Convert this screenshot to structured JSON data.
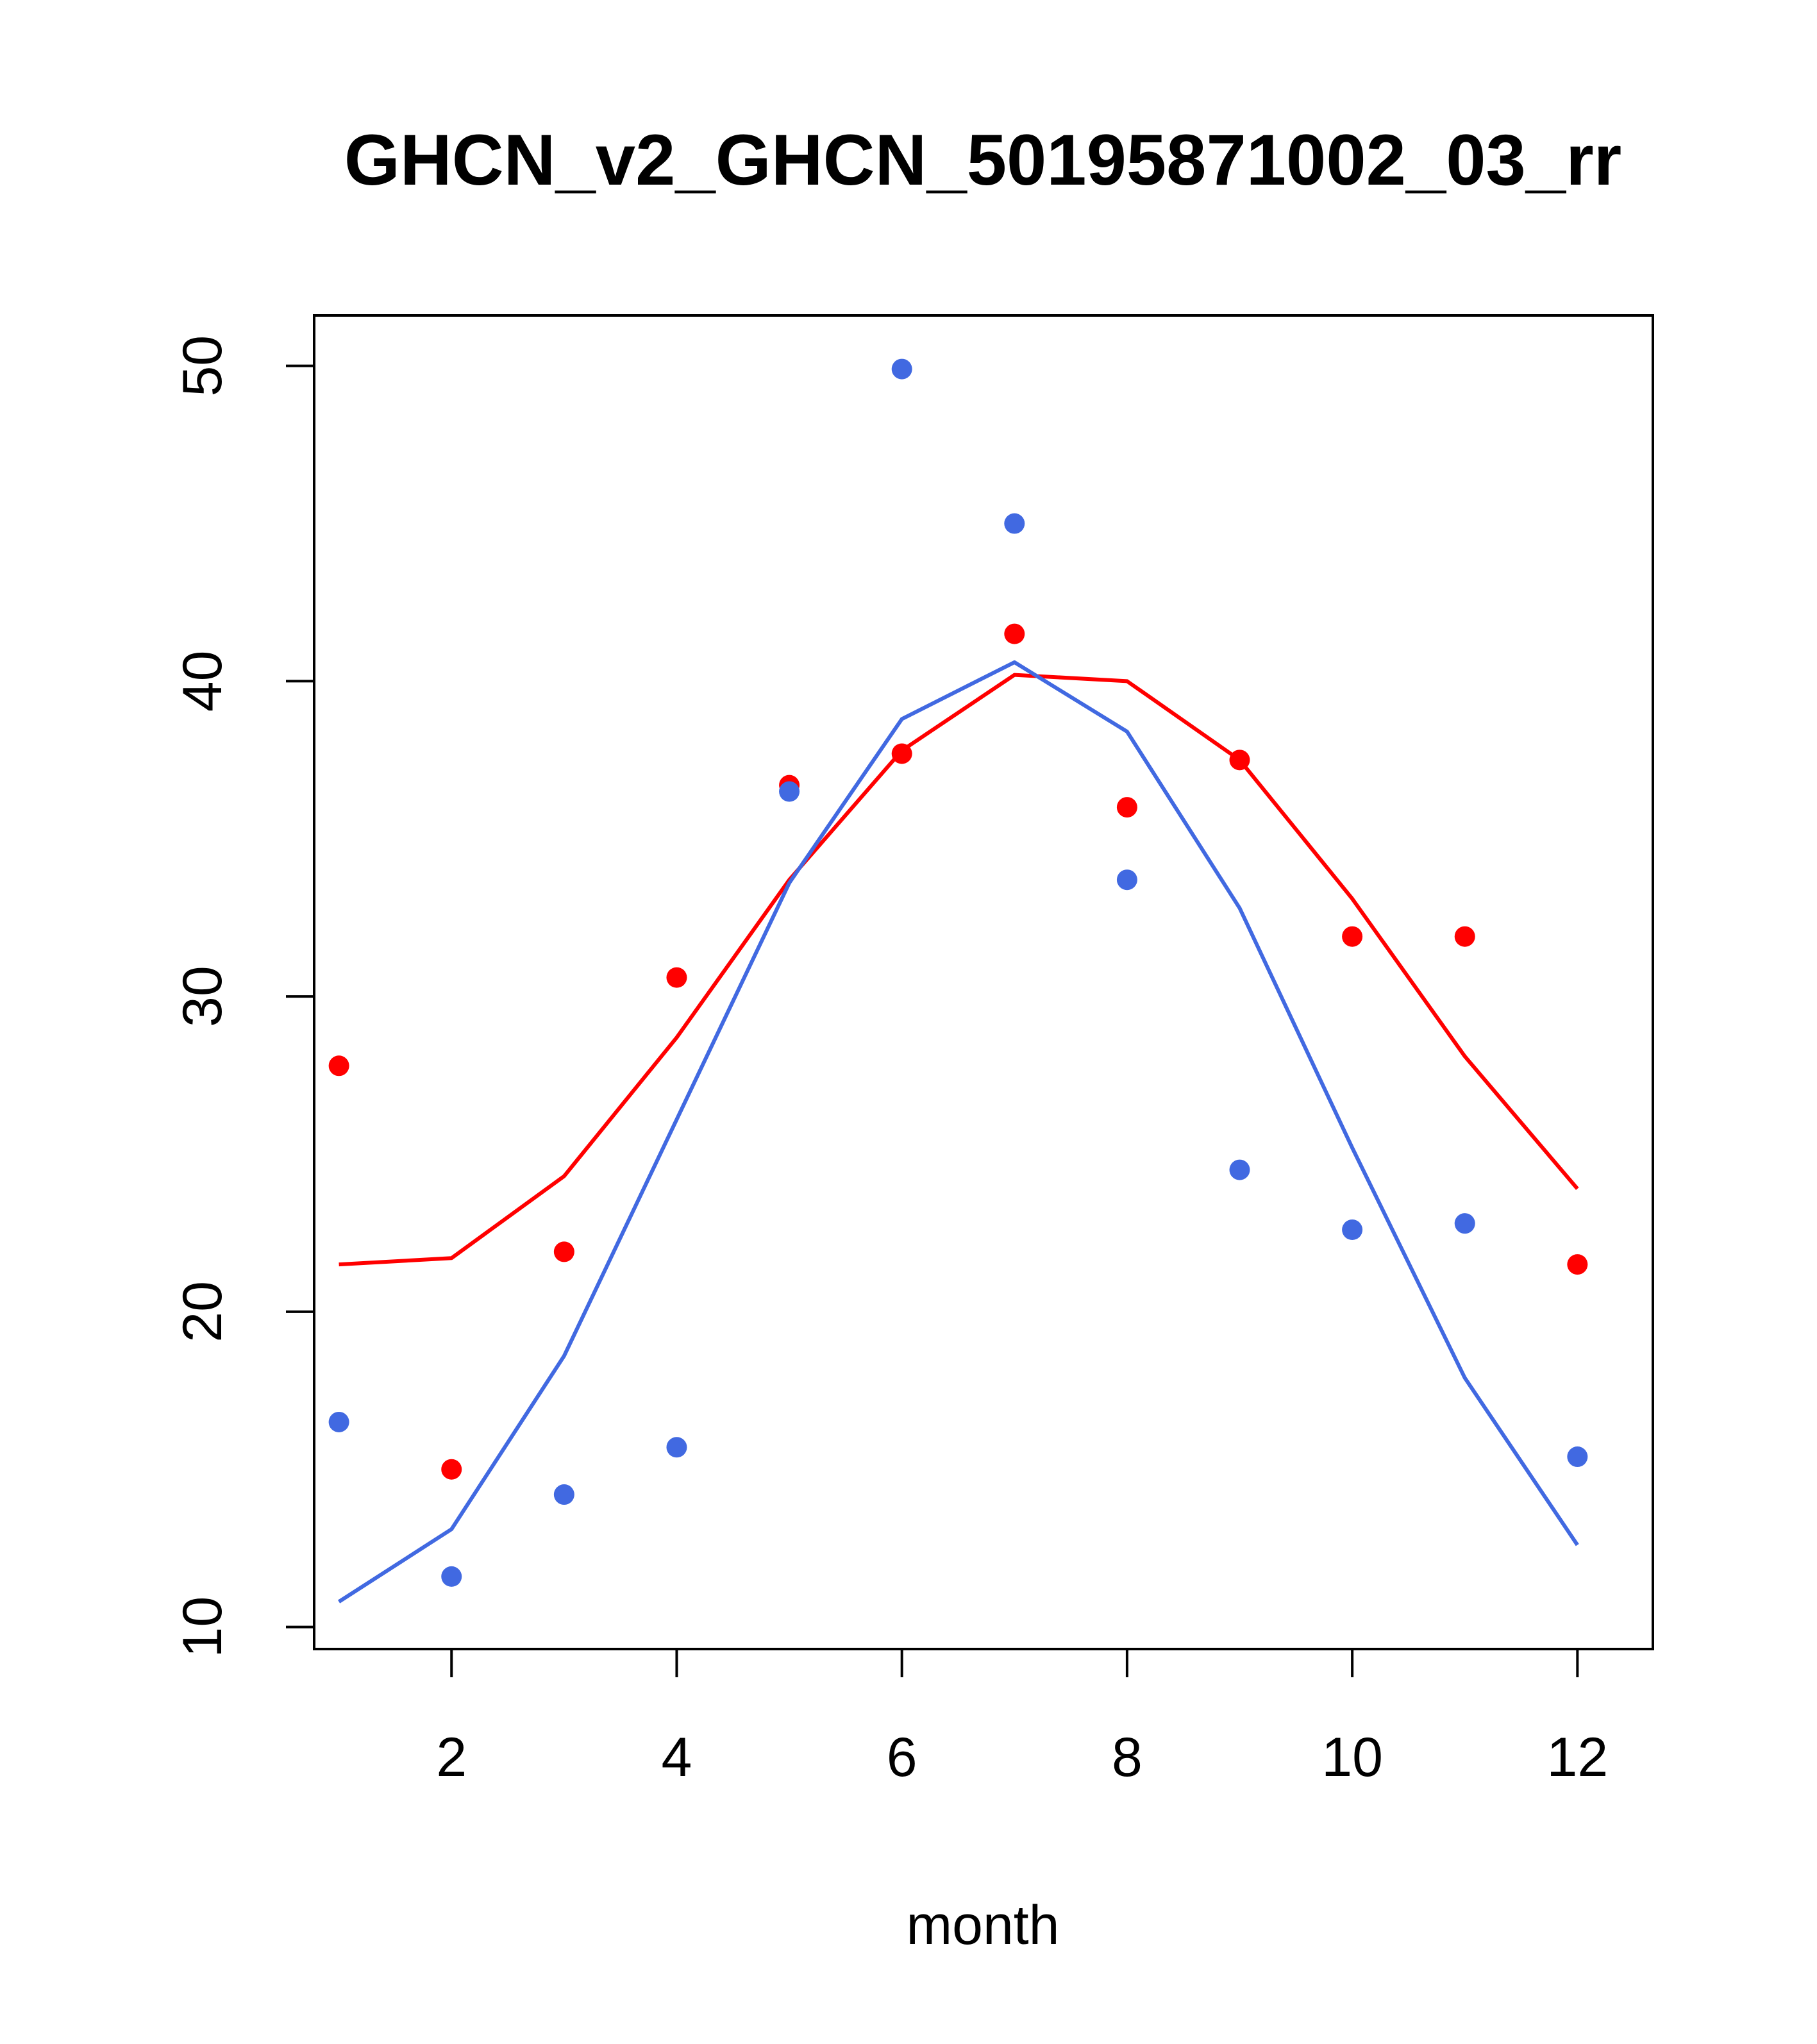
{
  "chart_data": {
    "type": "scatter",
    "title": "GHCN_v2_GHCN_50195871002_03_rr",
    "xlabel": "month",
    "ylabel": "",
    "xlim": [
      0.78,
      12.67
    ],
    "ylim": [
      9.3,
      51.6
    ],
    "x_ticks": [
      2,
      4,
      6,
      8,
      10,
      12
    ],
    "y_ticks": [
      10,
      20,
      30,
      40,
      50
    ],
    "grid": false,
    "legend": "none",
    "x": [
      1,
      2,
      3,
      4,
      5,
      6,
      7,
      8,
      9,
      10,
      11,
      12
    ],
    "series": [
      {
        "color": "#ff0000",
        "points": [
          27.8,
          15.0,
          21.9,
          30.6,
          36.7,
          37.7,
          41.5,
          36.0,
          37.5,
          31.9,
          31.9,
          21.5
        ],
        "line": [
          21.5,
          21.7,
          24.3,
          28.7,
          33.7,
          37.8,
          40.2,
          40.0,
          37.5,
          33.1,
          28.1,
          23.9
        ]
      },
      {
        "color": "#4169e1",
        "points": [
          16.5,
          11.6,
          14.2,
          15.7,
          36.5,
          49.9,
          45.0,
          33.7,
          24.5,
          22.6,
          22.8,
          15.4
        ],
        "line": [
          10.8,
          13.1,
          18.6,
          26.1,
          33.6,
          38.8,
          40.6,
          38.4,
          32.8,
          25.2,
          17.9,
          12.6
        ]
      }
    ]
  }
}
